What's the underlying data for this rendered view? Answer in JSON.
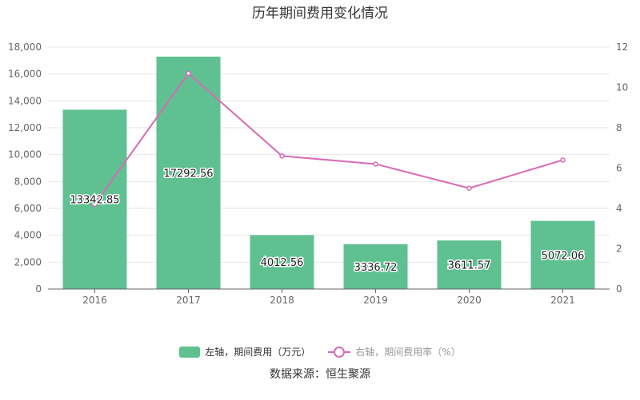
{
  "chart_data": {
    "type": "bar",
    "title": "历年期间费用变化情况",
    "categories": [
      "2016",
      "2017",
      "2018",
      "2019",
      "2020",
      "2021"
    ],
    "series": [
      {
        "name": "左轴，期间费用（万元）",
        "type": "bar",
        "axis": "left",
        "color": "#5fc191",
        "values": [
          13342.85,
          17292.56,
          4012.56,
          3336.72,
          3611.57,
          5072.06
        ],
        "labels": [
          "13342.85",
          "17292.56",
          "4012.56",
          "3336.72",
          "3611.57",
          "5072.06"
        ]
      },
      {
        "name": "右轴，期间费用率（%）",
        "type": "line",
        "axis": "right",
        "color": "#d86bb5",
        "values": [
          4.2,
          10.7,
          6.6,
          6.2,
          5.0,
          6.4
        ]
      }
    ],
    "y_left": {
      "min": 0,
      "max": 18000,
      "ticks": [
        0,
        2000,
        4000,
        6000,
        8000,
        10000,
        12000,
        14000,
        16000,
        18000
      ],
      "tick_labels": [
        "0",
        "2,000",
        "4,000",
        "6,000",
        "8,000",
        "10,000",
        "12,000",
        "14,000",
        "16,000",
        "18,000"
      ]
    },
    "y_right": {
      "min": 0,
      "max": 12,
      "ticks": [
        0,
        2,
        4,
        6,
        8,
        10,
        12
      ],
      "tick_labels": [
        "0",
        "2",
        "4",
        "6",
        "8",
        "10",
        "12"
      ]
    },
    "grid": true,
    "legend": "bottom-center"
  },
  "legend": {
    "bar_label": "左轴，期间费用（万元）",
    "line_label": "右轴，期间费用率（%）"
  },
  "source": "数据来源：恒生聚源"
}
